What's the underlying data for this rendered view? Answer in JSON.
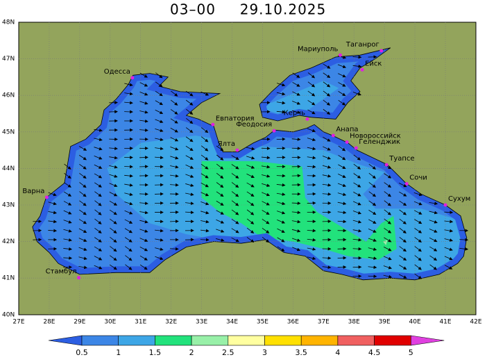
{
  "title": {
    "time": "03–00",
    "date": "29.10.2025"
  },
  "map": {
    "lat_labels": [
      "48N",
      "47N",
      "46N",
      "45N",
      "44N",
      "43N",
      "42N",
      "41N",
      "40N"
    ],
    "lon_labels": [
      "27E",
      "28E",
      "29E",
      "30E",
      "31E",
      "32E",
      "33E",
      "34E",
      "35E",
      "36E",
      "37E",
      "38E",
      "39E",
      "40E",
      "41E",
      "42E"
    ],
    "cities": [
      "Одесса",
      "Мариуполь",
      "Таганрог",
      "Ейск",
      "Евпатория",
      "Феодосия",
      "Керчь",
      "Анапа",
      "Новороссийск",
      "Геленджик",
      "Туапсе",
      "Сочи",
      "Сухум",
      "Ялта",
      "Варна",
      "Стамбул"
    ]
  },
  "legend": {
    "labels": [
      "0.5",
      "1",
      "1.5",
      "2",
      "2.5",
      "3",
      "3.5",
      "4",
      "4.5",
      "5"
    ]
  }
}
